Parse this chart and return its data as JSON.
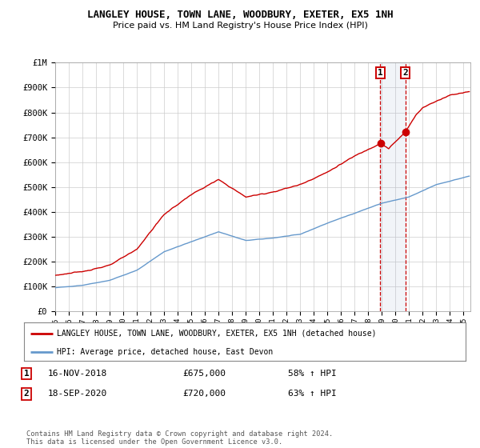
{
  "title": "LANGLEY HOUSE, TOWN LANE, WOODBURY, EXETER, EX5 1NH",
  "subtitle": "Price paid vs. HM Land Registry's House Price Index (HPI)",
  "legend_label_red": "LANGLEY HOUSE, TOWN LANE, WOODBURY, EXETER, EX5 1NH (detached house)",
  "legend_label_blue": "HPI: Average price, detached house, East Devon",
  "transaction1_date": "16-NOV-2018",
  "transaction1_price": 675000,
  "transaction1_pct": "58% ↑ HPI",
  "transaction2_date": "18-SEP-2020",
  "transaction2_price": 720000,
  "transaction2_pct": "63% ↑ HPI",
  "footer": "Contains HM Land Registry data © Crown copyright and database right 2024.\nThis data is licensed under the Open Government Licence v3.0.",
  "red_color": "#cc0000",
  "blue_color": "#6699cc",
  "background_color": "#ffffff",
  "grid_color": "#cccccc",
  "ylim": [
    0,
    1000000
  ],
  "yticks": [
    0,
    100000,
    200000,
    300000,
    400000,
    500000,
    600000,
    700000,
    800000,
    900000,
    1000000
  ],
  "ytick_labels": [
    "£0",
    "£100K",
    "£200K",
    "£300K",
    "£400K",
    "£500K",
    "£600K",
    "£700K",
    "£800K",
    "£900K",
    "£1M"
  ],
  "hpi_key_years": [
    1995,
    1997,
    1999,
    2001,
    2003,
    2005,
    2007,
    2009,
    2011,
    2013,
    2015,
    2017,
    2019,
    2021,
    2023,
    2025.5
  ],
  "hpi_key_values": [
    95000,
    105000,
    125000,
    165000,
    240000,
    280000,
    320000,
    285000,
    295000,
    310000,
    355000,
    395000,
    435000,
    460000,
    510000,
    545000
  ],
  "red_key_years": [
    1995,
    1997,
    1999,
    2001,
    2003,
    2005,
    2007,
    2009,
    2011,
    2013,
    2015,
    2017,
    2018.87,
    2019.5,
    2020.71,
    2021.5,
    2022,
    2023,
    2024,
    2025.5
  ],
  "red_key_values": [
    145000,
    160000,
    185000,
    250000,
    390000,
    470000,
    530000,
    460000,
    480000,
    510000,
    560000,
    625000,
    675000,
    655000,
    720000,
    790000,
    820000,
    845000,
    870000,
    885000
  ],
  "t1_year": 2018.876,
  "t2_year": 2020.712,
  "noise_seed_hpi": 42,
  "noise_seed_red": 123
}
